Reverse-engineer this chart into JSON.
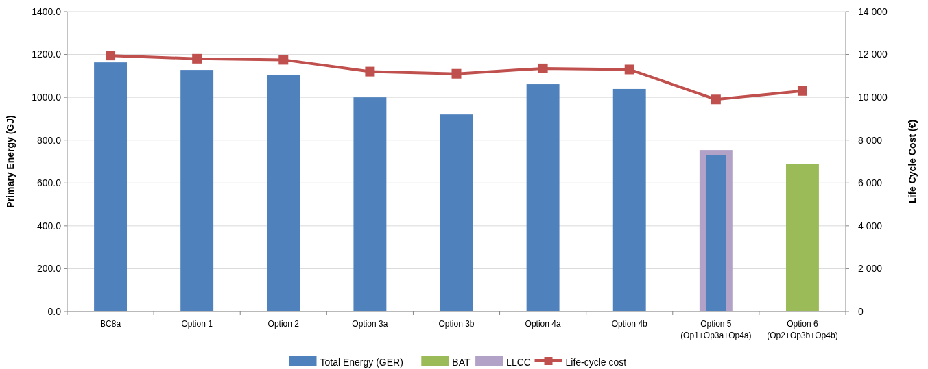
{
  "chart_data": {
    "type": "bar",
    "categories": [
      "BC8a",
      "Option 1",
      "Option 2",
      "Option 3a",
      "Option 3b",
      "Option 4a",
      "Option 4b",
      "Option 5\n(Op1+Op3a+Op4a)",
      "Option 6\n(Op2+Op3b+Op4b)"
    ],
    "ylabel": "Primary Energy (GJ)",
    "y2label": "Life Cycle  Cost (€)",
    "ylim": [
      0,
      1400
    ],
    "yticks": [
      {
        "value": 0,
        "label": "0.0"
      },
      {
        "value": 200,
        "label": "200.0"
      },
      {
        "value": 400,
        "label": "400.0"
      },
      {
        "value": 600,
        "label": "600.0"
      },
      {
        "value": 800,
        "label": "800.0"
      },
      {
        "value": 1000,
        "label": "1000.0"
      },
      {
        "value": 1200,
        "label": "1200.0"
      },
      {
        "value": 1400,
        "label": "1400.0"
      }
    ],
    "y2lim": [
      0,
      14000
    ],
    "y2ticks": [
      0,
      {
        "value": 2000,
        "label": "2 000"
      },
      {
        "value": 4000,
        "label": "4 000"
      },
      {
        "value": 6000,
        "label": "6 000"
      },
      {
        "value": 8000,
        "label": "8 000"
      },
      {
        "value": 10000,
        "label": "10 000"
      },
      {
        "value": 12000,
        "label": "12 000"
      },
      {
        "value": 14000,
        "label": "14 000"
      }
    ],
    "grid": "y",
    "legend": "bottom",
    "series": [
      {
        "name": "Total Energy (GER)",
        "color": "#4f81bd",
        "values": [
          1163,
          1128,
          1106,
          1000,
          920,
          1061,
          1039,
          732,
          null
        ]
      },
      {
        "name": "BAT",
        "color": "#9bbb59",
        "values": [
          null,
          null,
          null,
          null,
          null,
          null,
          null,
          null,
          690
        ]
      },
      {
        "name": "LLCC",
        "color": "#b3a2c7",
        "values": [
          null,
          null,
          null,
          null,
          null,
          null,
          null,
          754,
          null
        ]
      },
      {
        "name": "Life-cycle cost",
        "type": "line",
        "axis": "y2",
        "color": "#c0504d",
        "marker": "square",
        "values": [
          11950,
          11800,
          11750,
          11200,
          11100,
          11350,
          11300,
          9900,
          10300
        ]
      }
    ]
  }
}
